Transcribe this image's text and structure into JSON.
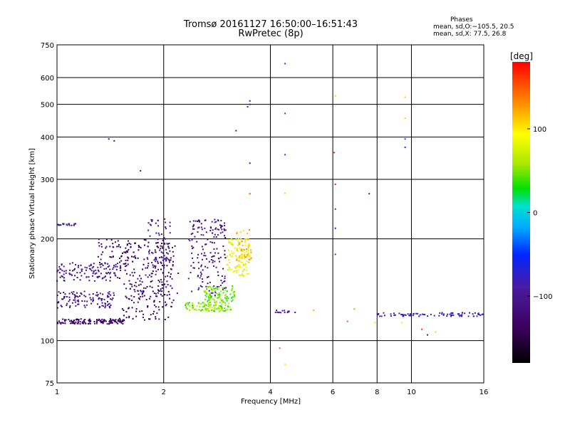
{
  "chart_data": {
    "type": "scatter",
    "title": "Tromsø 20161127 16:50:00–16:51:43",
    "subtitle": "RwPretec (8p)",
    "xlabel": "Frequency [MHz]",
    "ylabel": "Stationary phase Virtual Height [km]",
    "x_scale": "log",
    "y_scale": "log",
    "xlim": [
      1,
      16
    ],
    "ylim": [
      75,
      750
    ],
    "x_ticks": [
      1,
      2,
      4,
      6,
      8,
      10,
      16
    ],
    "x_tick_labels": [
      "1",
      "2",
      "4",
      "6",
      "8",
      "10",
      "16"
    ],
    "y_ticks": [
      75,
      100,
      200,
      300,
      400,
      500,
      600,
      750
    ],
    "y_tick_labels": [
      "75",
      "100",
      "200",
      "300",
      "400",
      "500",
      "600",
      "750"
    ],
    "grid": true,
    "annotation": {
      "heading": "Phases",
      "line1": "mean, sd,O:−105.5, 20.5",
      "line2": "mean, sd,X:  77.5, 26.8"
    },
    "colorbar": {
      "label": "[deg]",
      "range": [
        -180,
        180
      ],
      "ticks": [
        100,
        0,
        -100
      ],
      "tick_labels": [
        "100",
        "0",
        "−100"
      ]
    },
    "clusters": [
      {
        "x": [
          1.0,
          1.55
        ],
        "y": [
          112,
          116
        ],
        "phase": -130,
        "n": 140
      },
      {
        "x": [
          1.0,
          1.45
        ],
        "y": [
          125,
          140
        ],
        "phase": -110,
        "n": 110
      },
      {
        "x": [
          1.0,
          1.5
        ],
        "y": [
          150,
          170
        ],
        "phase": -105,
        "n": 110
      },
      {
        "x": [
          1.0,
          1.15
        ],
        "y": [
          218,
          222
        ],
        "phase": -100,
        "n": 20
      },
      {
        "x": [
          1.5,
          2.1
        ],
        "y": [
          115,
          200
        ],
        "phase": -140,
        "n": 160
      },
      {
        "x": [
          1.3,
          1.6
        ],
        "y": [
          165,
          200
        ],
        "phase": -125,
        "n": 50
      },
      {
        "x": [
          1.6,
          2.2
        ],
        "y": [
          125,
          195
        ],
        "phase": -115,
        "n": 120
      },
      {
        "x": [
          1.8,
          2.1
        ],
        "y": [
          170,
          230
        ],
        "phase": -95,
        "n": 50
      },
      {
        "x": [
          2.35,
          3.0
        ],
        "y": [
          135,
          230
        ],
        "phase": -105,
        "n": 170
      },
      {
        "x": [
          2.3,
          3.1
        ],
        "y": [
          122,
          130
        ],
        "phase": 55,
        "n": 110
      },
      {
        "x": [
          2.6,
          3.2
        ],
        "y": [
          130,
          145
        ],
        "phase": 45,
        "n": 90
      },
      {
        "x": [
          3.0,
          3.5
        ],
        "y": [
          155,
          200
        ],
        "phase": 85,
        "n": 100
      },
      {
        "x": [
          3.2,
          3.55
        ],
        "y": [
          170,
          215
        ],
        "phase": 120,
        "n": 50
      },
      {
        "x": [
          4.1,
          4.7
        ],
        "y": [
          121,
          123
        ],
        "phase": -85,
        "n": 14
      },
      {
        "x": [
          8.0,
          16.0
        ],
        "y": [
          118,
          121
        ],
        "phase": -80,
        "n": 80
      }
    ],
    "points": [
      {
        "x": 1.4,
        "y": 395,
        "phase": -110
      },
      {
        "x": 1.45,
        "y": 390,
        "phase": -110
      },
      {
        "x": 1.72,
        "y": 318,
        "phase": -100
      },
      {
        "x": 3.2,
        "y": 418,
        "phase": -95
      },
      {
        "x": 3.45,
        "y": 492,
        "phase": -90
      },
      {
        "x": 3.5,
        "y": 500,
        "phase": -95
      },
      {
        "x": 3.5,
        "y": 512,
        "phase": -85
      },
      {
        "x": 3.5,
        "y": 335,
        "phase": -60
      },
      {
        "x": 3.5,
        "y": 272,
        "phase": 150
      },
      {
        "x": 4.4,
        "y": 660,
        "phase": -40
      },
      {
        "x": 4.4,
        "y": 470,
        "phase": -40
      },
      {
        "x": 4.4,
        "y": 355,
        "phase": -40
      },
      {
        "x": 4.4,
        "y": 273,
        "phase": 110
      },
      {
        "x": 4.25,
        "y": 95,
        "phase": 150
      },
      {
        "x": 4.4,
        "y": 85,
        "phase": 100
      },
      {
        "x": 6.1,
        "y": 530,
        "phase": 110
      },
      {
        "x": 6.05,
        "y": 360,
        "phase": 170
      },
      {
        "x": 6.1,
        "y": 290,
        "phase": 170
      },
      {
        "x": 6.1,
        "y": 245,
        "phase": -40
      },
      {
        "x": 6.1,
        "y": 215,
        "phase": -50
      },
      {
        "x": 6.1,
        "y": 180,
        "phase": -40
      },
      {
        "x": 7.6,
        "y": 272,
        "phase": -90
      },
      {
        "x": 9.6,
        "y": 525,
        "phase": 110
      },
      {
        "x": 9.6,
        "y": 455,
        "phase": 110
      },
      {
        "x": 9.6,
        "y": 395,
        "phase": -40
      },
      {
        "x": 9.6,
        "y": 373,
        "phase": -50
      },
      {
        "x": 5.3,
        "y": 123,
        "phase": 120
      },
      {
        "x": 6.9,
        "y": 124,
        "phase": 130
      },
      {
        "x": 6.6,
        "y": 114,
        "phase": 150
      },
      {
        "x": 7.9,
        "y": 113,
        "phase": 80
      },
      {
        "x": 9.4,
        "y": 113,
        "phase": 90
      },
      {
        "x": 10.7,
        "y": 108,
        "phase": 160
      },
      {
        "x": 11.1,
        "y": 104,
        "phase": -70
      },
      {
        "x": 11.7,
        "y": 106,
        "phase": 110
      }
    ]
  }
}
